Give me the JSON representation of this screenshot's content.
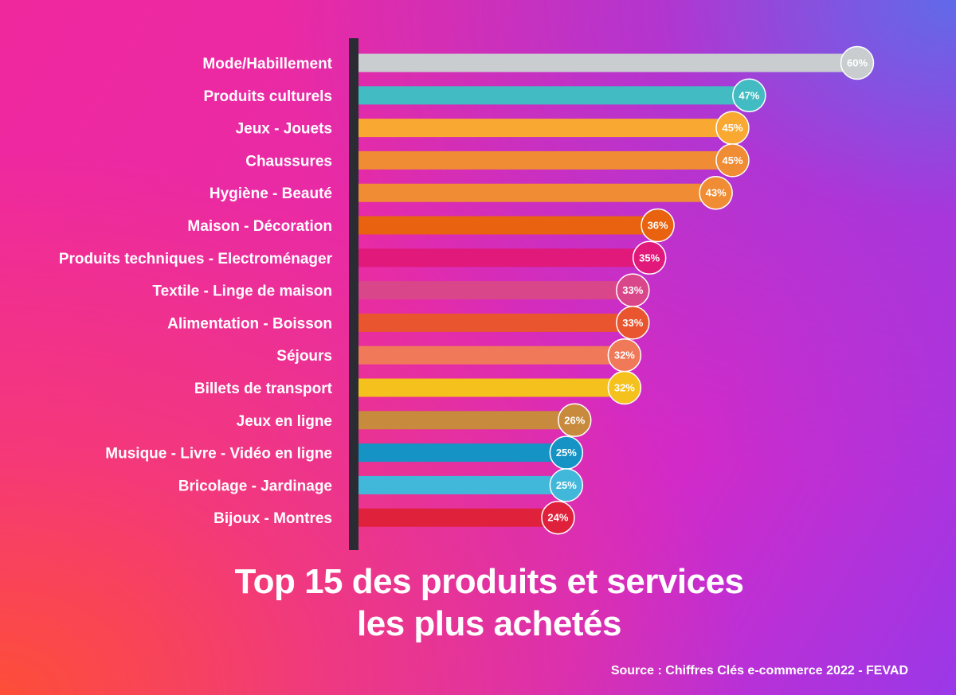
{
  "chart_data": {
    "type": "bar",
    "orientation": "horizontal",
    "title": "Top 15 des produits et services les plus achetés",
    "title_lines": [
      "Top 15 des produits et services",
      "les plus achetés"
    ],
    "source": "Source : Chiffres Clés e-commerce 2022 - FEVAD",
    "value_suffix": "%",
    "xlim": [
      0,
      60
    ],
    "categories": [
      "Mode/Habillement",
      "Produits culturels",
      "Jeux - Jouets",
      "Chaussures",
      "Hygiène - Beauté",
      "Maison - Décoration",
      "Produits techniques - Electroménager",
      "Textile - Linge de maison",
      "Alimentation - Boisson",
      "Séjours",
      "Billets de transport",
      "Jeux en ligne",
      "Musique - Livre - Vidéo en ligne",
      "Bricolage - Jardinage",
      "Bijoux - Montres"
    ],
    "values": [
      60,
      47,
      45,
      45,
      43,
      36,
      35,
      33,
      33,
      32,
      32,
      26,
      25,
      25,
      24
    ],
    "colors": [
      "#c9cdd0",
      "#42bcc2",
      "#f9a832",
      "#f08c34",
      "#f08c34",
      "#e8620f",
      "#e0197a",
      "#d9478a",
      "#e8552e",
      "#f0795a",
      "#f5c11d",
      "#c88a3c",
      "#1493c4",
      "#41b8da",
      "#e0213b"
    ]
  }
}
